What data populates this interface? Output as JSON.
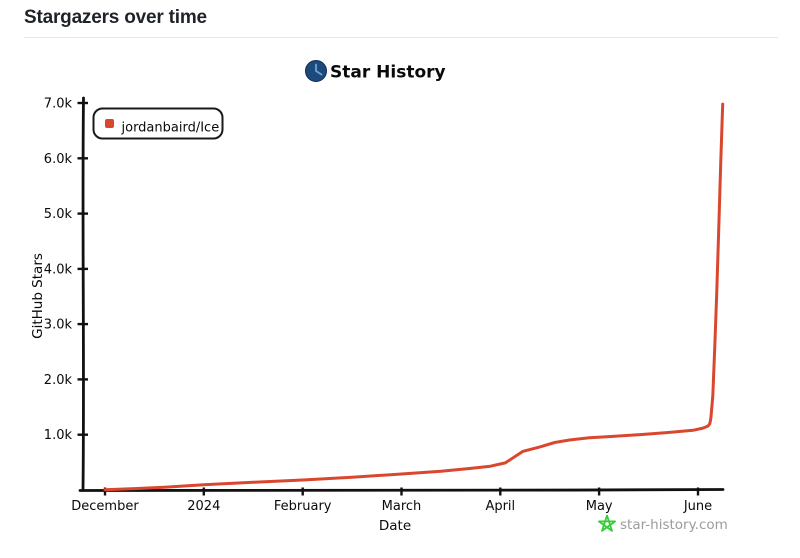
{
  "page": {
    "title": "Stargazers over time"
  },
  "chart_data": {
    "type": "line",
    "title": "Star History",
    "xlabel": "Date",
    "ylabel": "GitHub Stars",
    "x_tick_labels": [
      "December",
      "2024",
      "February",
      "March",
      "April",
      "May",
      "June"
    ],
    "x_tick_months_from_dec_2023": [
      0,
      1,
      2,
      3,
      4,
      5,
      6
    ],
    "y_tick_labels": [
      "1.0k",
      "2.0k",
      "3.0k",
      "4.0k",
      "5.0k",
      "6.0k",
      "7.0k"
    ],
    "y_tick_values": [
      1000,
      2000,
      3000,
      4000,
      5000,
      6000,
      7000
    ],
    "ylim": [
      0,
      7250
    ],
    "xlim_months_from_dec_2023": [
      0,
      6.26
    ],
    "grid": false,
    "legend_position": "top-left",
    "watermark": "star-history.com",
    "icons": {
      "title_icon": "clock-icon",
      "watermark_icon": "star-icon",
      "legend_marker": "square-marker"
    },
    "colors": {
      "series_red": "#d9472e",
      "watermark_green": "#35cc35",
      "icon_blue": "#1c4a7d",
      "icon_hands_blue": "#6fa3d4",
      "axis_black": "#111111",
      "watermark_gray": "#9b9b9b"
    },
    "series": [
      {
        "name": "jordanbaird/Ice",
        "color": "#d9472e",
        "points_months_stars": [
          [
            0,
            5
          ],
          [
            0.3,
            25
          ],
          [
            0.6,
            50
          ],
          [
            1,
            95
          ],
          [
            1.5,
            140
          ],
          [
            2,
            180
          ],
          [
            2.5,
            230
          ],
          [
            3,
            290
          ],
          [
            3.4,
            340
          ],
          [
            3.7,
            390
          ],
          [
            3.9,
            430
          ],
          [
            4.05,
            490
          ],
          [
            4.23,
            700
          ],
          [
            4.4,
            780
          ],
          [
            4.55,
            860
          ],
          [
            4.7,
            905
          ],
          [
            4.9,
            945
          ],
          [
            5.1,
            965
          ],
          [
            5.4,
            1000
          ],
          [
            5.7,
            1040
          ],
          [
            5.95,
            1080
          ],
          [
            6.05,
            1120
          ],
          [
            6.1,
            1155
          ],
          [
            6.12,
            1200
          ],
          [
            6.13,
            1290
          ],
          [
            6.15,
            1700
          ],
          [
            6.17,
            2600
          ],
          [
            6.19,
            3600
          ],
          [
            6.21,
            4700
          ],
          [
            6.23,
            5900
          ],
          [
            6.25,
            6980
          ]
        ]
      }
    ]
  }
}
